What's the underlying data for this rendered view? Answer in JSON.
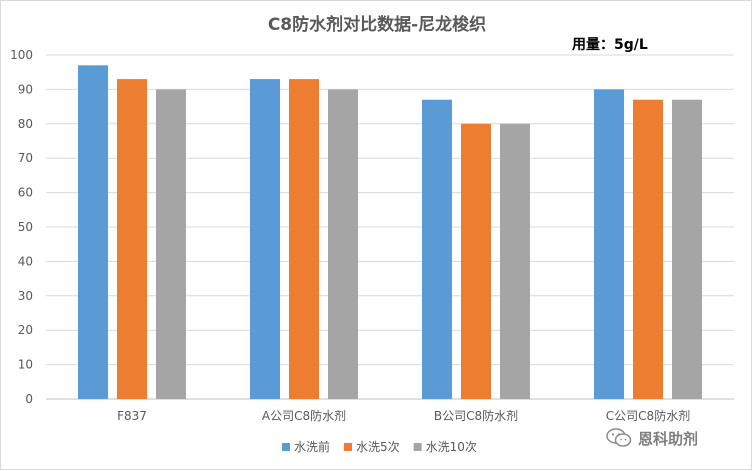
{
  "watermark": {
    "text": "恩科助剂",
    "icon": "wechat-icon"
  },
  "chart_data": {
    "type": "bar",
    "title": "C8防水剂对比数据-尼龙梭织",
    "annotation": "用量：5g/L",
    "categories": [
      "F837",
      "A公司C8防水剂",
      "B公司C8防水剂",
      "C公司C8防水剂"
    ],
    "series": [
      {
        "name": "水洗前",
        "values": [
          97,
          93,
          87,
          90
        ],
        "color": "#5b9bd5"
      },
      {
        "name": "水洗5次",
        "values": [
          93,
          93,
          80,
          87
        ],
        "color": "#ed7d31"
      },
      {
        "name": "水洗10次",
        "values": [
          90,
          90,
          80,
          87
        ],
        "color": "#a5a5a5"
      }
    ],
    "ylim": [
      0,
      100
    ],
    "yticks": [
      0,
      10,
      20,
      30,
      40,
      50,
      60,
      70,
      80,
      90,
      100
    ],
    "xlabel": "",
    "ylabel": "",
    "grid": true,
    "legend": "bottom"
  }
}
